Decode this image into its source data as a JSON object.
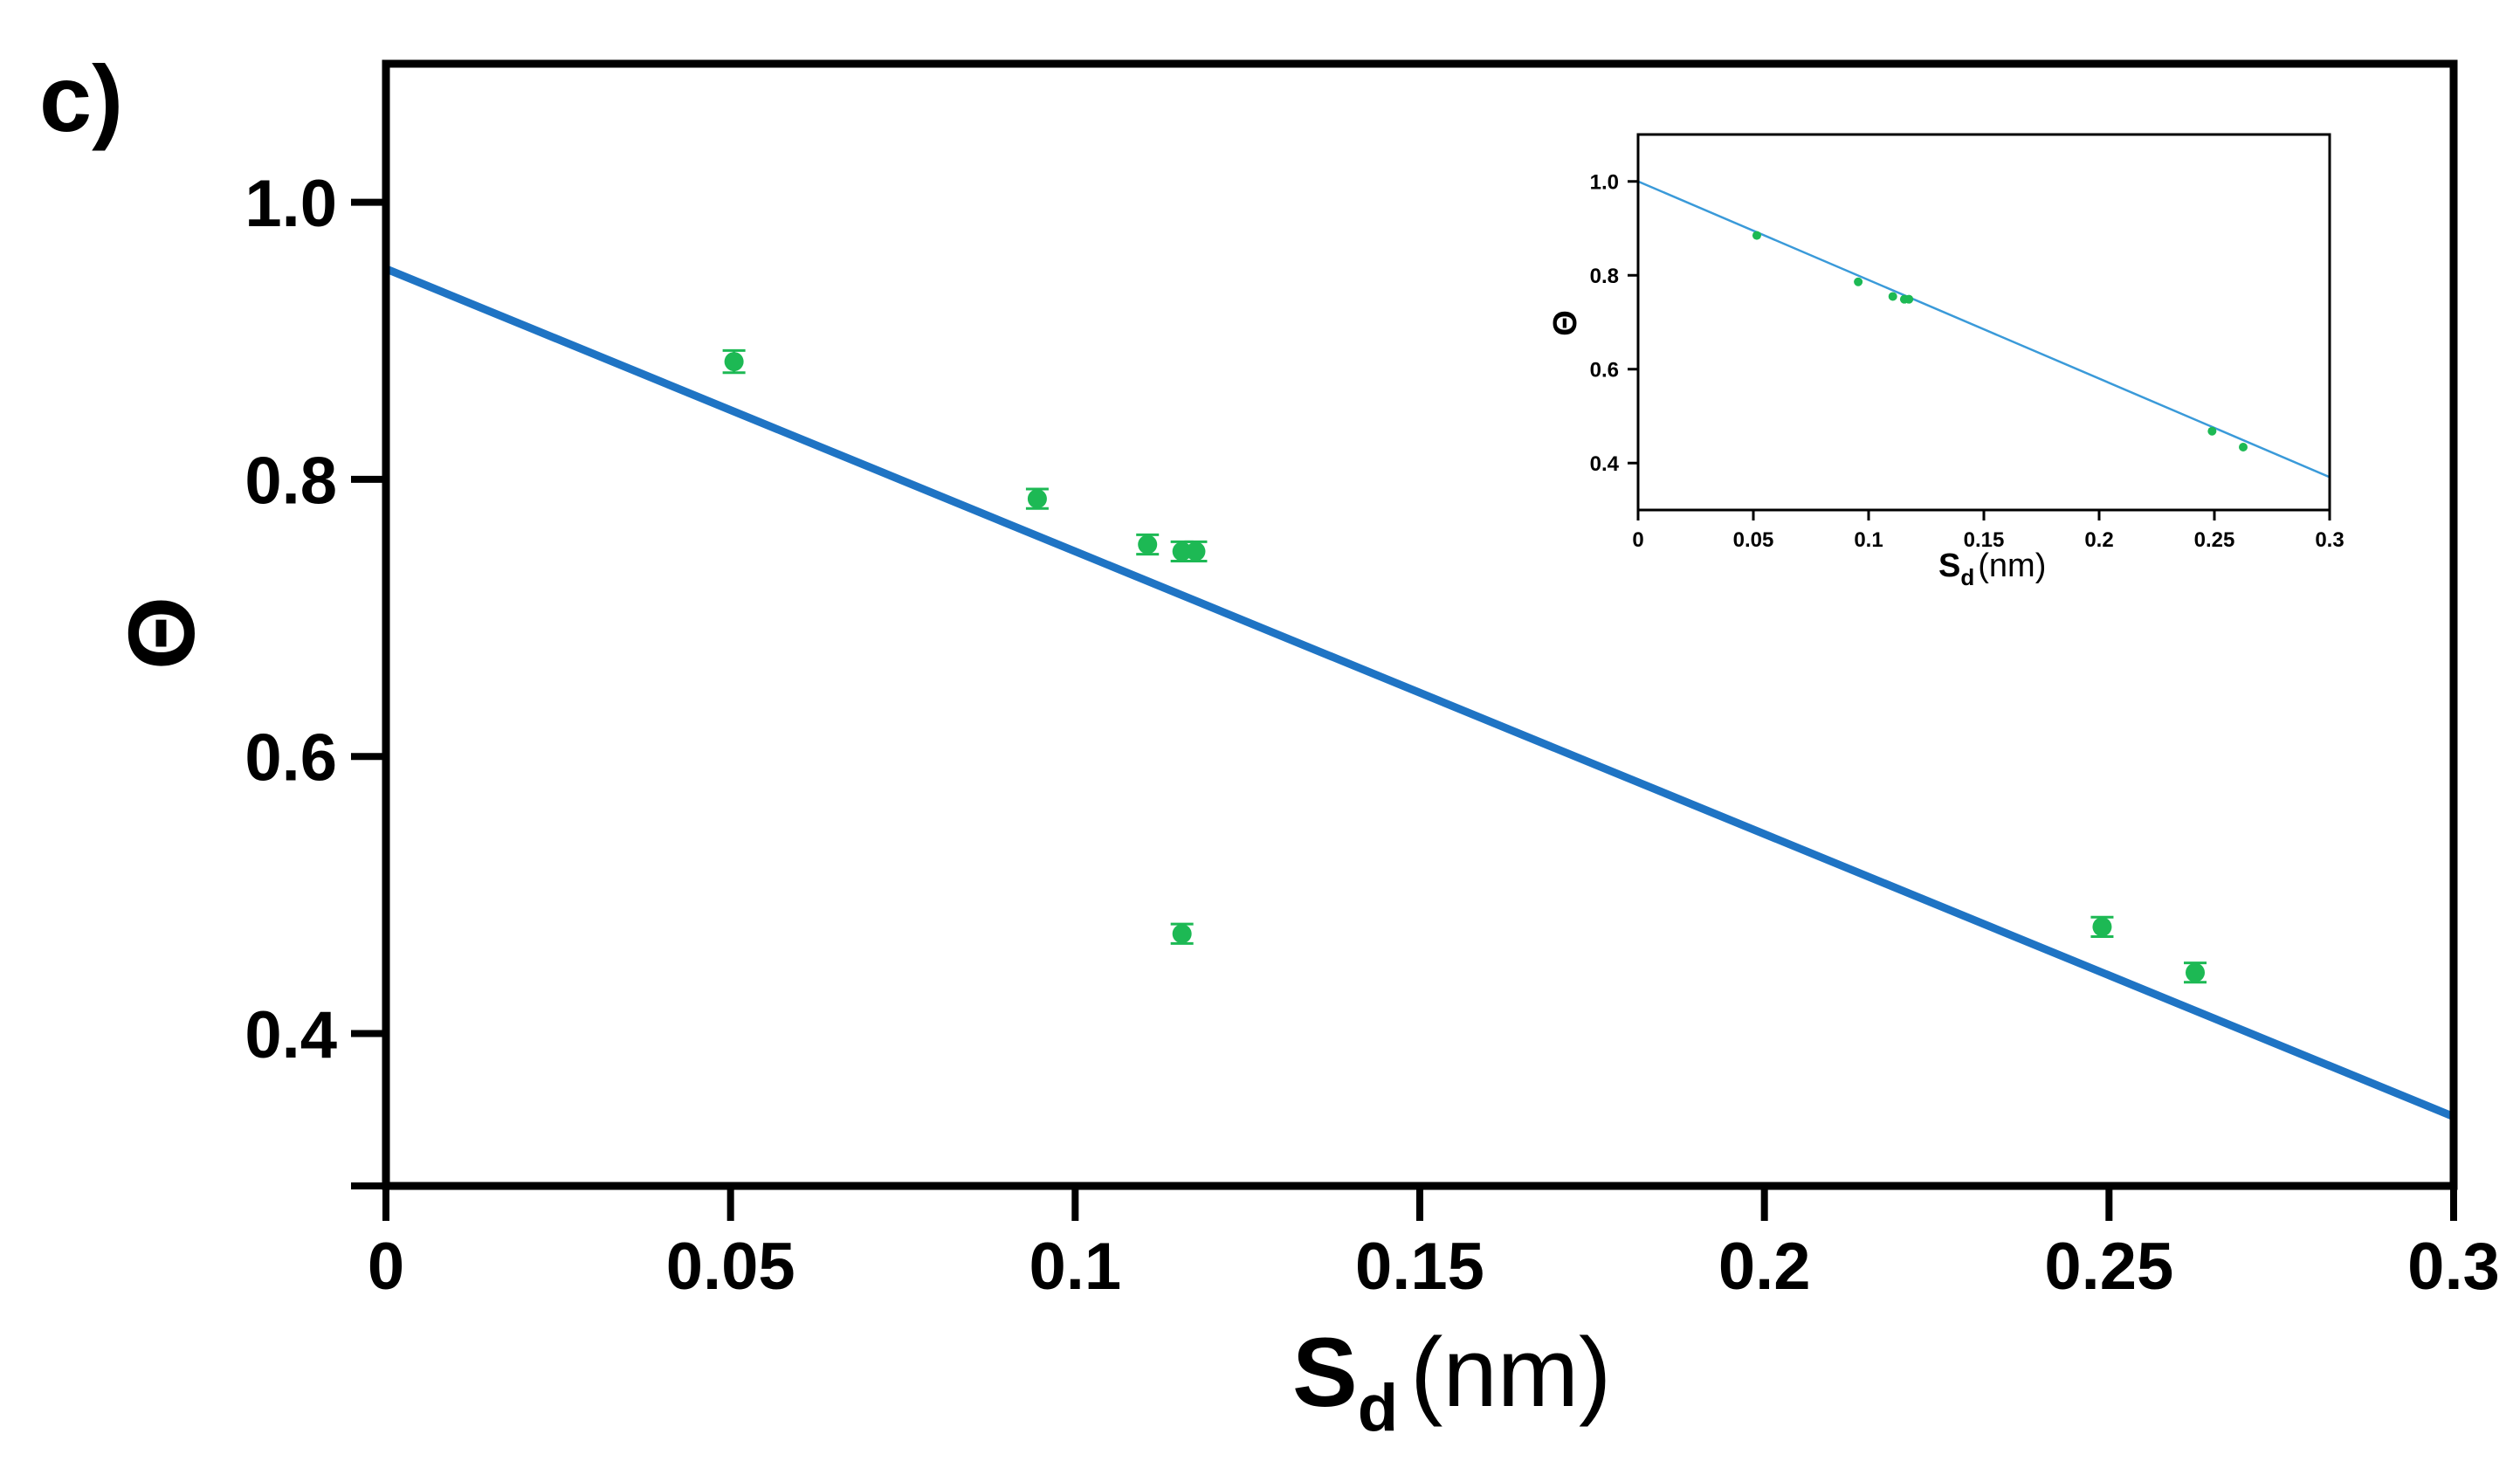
{
  "panel_label": "c)",
  "chart_data": [
    {
      "id": "main",
      "type": "scatter",
      "title": "",
      "xlabel": "S",
      "xlabel_sub": "d",
      "xlabel_unit": "(nm)",
      "ylabel": "Θ",
      "xlim": [
        0,
        0.3
      ],
      "ylim": [
        0.29,
        1.1
      ],
      "x_ticks": [
        0,
        0.05,
        0.1,
        0.15,
        0.2,
        0.25,
        0.3
      ],
      "x_tick_labels": [
        "0",
        "0.05",
        "0.1",
        "0.15",
        "0.2",
        "0.25",
        "0.3"
      ],
      "y_ticks": [
        0.4,
        0.6,
        0.8,
        1.0
      ],
      "y_tick_labels": [
        "0.4",
        "0.6",
        "0.8",
        "1.0"
      ],
      "points": [
        {
          "x": 0.0505,
          "y": 0.885,
          "err": 0.008
        },
        {
          "x": 0.0945,
          "y": 0.786,
          "err": 0.007
        },
        {
          "x": 0.1105,
          "y": 0.753,
          "err": 0.007
        },
        {
          "x": 0.1155,
          "y": 0.748,
          "err": 0.007
        },
        {
          "x": 0.1175,
          "y": 0.748,
          "err": 0.007
        },
        {
          "x": 0.1155,
          "y": 0.472,
          "err": 0.007
        },
        {
          "x": 0.249,
          "y": 0.477,
          "err": 0.007
        },
        {
          "x": 0.2625,
          "y": 0.444,
          "err": 0.007
        }
      ],
      "fit_line": {
        "x": [
          0,
          0.3
        ],
        "y": [
          0.952,
          0.34
        ]
      },
      "colors": {
        "points": "#1db954",
        "line": "#1f74c4",
        "axes": "#000000"
      }
    },
    {
      "id": "inset",
      "type": "scatter",
      "title": "",
      "xlabel": "S",
      "xlabel_sub": "d",
      "xlabel_unit": "(nm)",
      "ylabel": "Θ",
      "xlim": [
        0,
        0.3
      ],
      "ylim": [
        0.3,
        1.1
      ],
      "x_ticks": [
        0,
        0.05,
        0.1,
        0.15,
        0.2,
        0.25,
        0.3
      ],
      "x_tick_labels": [
        "0",
        "0.05",
        "0.1",
        "0.15",
        "0.2",
        "0.25",
        "0.3"
      ],
      "y_ticks": [
        0.4,
        0.6,
        0.8,
        1.0
      ],
      "y_tick_labels": [
        "0.4",
        "0.6",
        "0.8",
        "1.0"
      ],
      "points": [
        {
          "x": 0.0515,
          "y": 0.885
        },
        {
          "x": 0.0955,
          "y": 0.786
        },
        {
          "x": 0.1105,
          "y": 0.755
        },
        {
          "x": 0.1155,
          "y": 0.749
        },
        {
          "x": 0.1175,
          "y": 0.749
        },
        {
          "x": 0.249,
          "y": 0.468
        },
        {
          "x": 0.2625,
          "y": 0.434
        }
      ],
      "fit_line": {
        "x": [
          0,
          0.3
        ],
        "y": [
          1.0,
          0.37
        ]
      },
      "colors": {
        "points": "#1db954",
        "line": "#3a9ad9",
        "axes": "#000000"
      }
    }
  ]
}
